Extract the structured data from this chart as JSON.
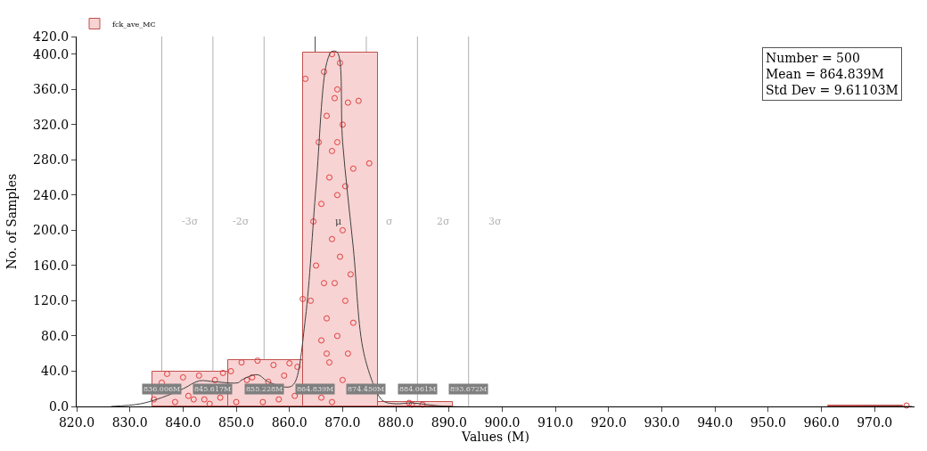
{
  "chart_data": {
    "type": "histogram",
    "xlabel": "Values (M)",
    "ylabel": "No. of Samples",
    "xlim": [
      820,
      977.5
    ],
    "ylim": [
      0,
      420
    ],
    "xticks": [
      {
        "value": 820,
        "label": "820.0"
      },
      {
        "value": 830,
        "label": "830.0"
      },
      {
        "value": 840,
        "label": "840.0"
      },
      {
        "value": 850,
        "label": "850.0"
      },
      {
        "value": 860,
        "label": "860.0"
      },
      {
        "value": 870,
        "label": "870.0"
      },
      {
        "value": 880,
        "label": "880.0"
      },
      {
        "value": 890,
        "label": "890.0"
      },
      {
        "value": 900,
        "label": "900.0"
      },
      {
        "value": 910,
        "label": "910.0"
      },
      {
        "value": 920,
        "label": "920.0"
      },
      {
        "value": 930,
        "label": "930.0"
      },
      {
        "value": 940,
        "label": "940.0"
      },
      {
        "value": 950,
        "label": "950.0"
      },
      {
        "value": 960,
        "label": "960.0"
      },
      {
        "value": 970,
        "label": "970.0"
      }
    ],
    "yticks": [
      {
        "value": 0,
        "label": "0.0"
      },
      {
        "value": 40,
        "label": "40.0"
      },
      {
        "value": 80,
        "label": "80.0"
      },
      {
        "value": 120,
        "label": "120.0"
      },
      {
        "value": 160,
        "label": "160.0"
      },
      {
        "value": 200,
        "label": "200.0"
      },
      {
        "value": 240,
        "label": "240.0"
      },
      {
        "value": 280,
        "label": "280.0"
      },
      {
        "value": 320,
        "label": "320.0"
      },
      {
        "value": 360,
        "label": "360.0"
      },
      {
        "value": 400,
        "label": "400.0"
      },
      {
        "value": 420,
        "label": "420.0"
      }
    ],
    "grid": false,
    "legend": "top left",
    "series": [
      {
        "name": "fck_ave_MC",
        "color": "#f8d3d3",
        "bins": [
          834.3,
          848.4,
          862.5,
          876.6,
          890.7,
          904.8,
          918.9,
          933.0,
          947.1,
          961.2,
          975.3
        ],
        "values": [
          39,
          53,
          402,
          5,
          0,
          0,
          0,
          0,
          0,
          1
        ]
      },
      {
        "type": "scatter",
        "color": "#e03c3c",
        "marker": "circle",
        "x": [
          834.5,
          836,
          837,
          838.5,
          840,
          841,
          842,
          843,
          844,
          845,
          846,
          847,
          847.5,
          849,
          850,
          851,
          852,
          853,
          854,
          855,
          856,
          857,
          858,
          859,
          860,
          861,
          861.5,
          863,
          862.5,
          864.5,
          865,
          865.5,
          866,
          866.5,
          867,
          867,
          867.5,
          867.5,
          868,
          868,
          868,
          868.5,
          868.5,
          869,
          869,
          869,
          869.5,
          869.5,
          870,
          870,
          870,
          870.5,
          871,
          871,
          871.5,
          872,
          872,
          866,
          866.5,
          867,
          868,
          869,
          866,
          870.5,
          875,
          873,
          864,
          882.5,
          883,
          885,
          976
        ],
        "values": [
          8,
          27,
          37,
          5,
          33,
          12,
          8,
          35,
          8,
          3,
          30,
          10,
          38,
          40,
          5,
          50,
          30,
          33,
          52,
          5,
          28,
          47,
          8,
          35,
          49,
          12,
          45,
          372,
          122,
          210,
          160,
          300,
          230,
          380,
          330,
          100,
          260,
          50,
          400,
          190,
          5,
          350,
          140,
          300,
          80,
          240,
          390,
          170,
          30,
          320,
          200,
          120,
          345,
          60,
          150,
          270,
          95,
          10,
          140,
          60,
          290,
          360,
          75,
          250,
          276,
          347,
          120,
          4,
          2,
          2,
          1
        ]
      },
      {
        "type": "line",
        "color": "#404040",
        "line_style": "solid",
        "marker": "none",
        "x": [
          826.5,
          832,
          836,
          840,
          843,
          846,
          850.4,
          851,
          854,
          856,
          859.9,
          861,
          863,
          865,
          867,
          868,
          869,
          870,
          872,
          874,
          877,
          878,
          880,
          883,
          886,
          890,
          977
        ],
        "values": [
          0,
          3,
          10,
          20,
          29,
          28,
          27,
          30,
          36,
          28,
          22,
          27,
          100,
          250,
          390,
          403,
          402,
          300,
          180,
          60,
          10,
          5,
          3,
          4,
          2,
          0,
          0
        ]
      }
    ],
    "ref_lines": [
      {
        "axis": "x",
        "value": 836.006,
        "label": "-3σ",
        "color": "#b0b0b0"
      },
      {
        "axis": "x",
        "value": 845.617,
        "label": "-2σ",
        "color": "#b0b0b0"
      },
      {
        "axis": "x",
        "value": 855.228,
        "color": "#b0b0b0"
      },
      {
        "axis": "x",
        "value": 864.839,
        "label": "μ",
        "color": "#404040"
      },
      {
        "axis": "x",
        "value": 874.45,
        "label": "σ",
        "color": "#b0b0b0"
      },
      {
        "axis": "x",
        "value": 884.061,
        "label": "2σ",
        "color": "#b0b0b0"
      },
      {
        "axis": "x",
        "value": 893.672,
        "label": "3σ",
        "color": "#b0b0b0"
      }
    ],
    "annotations": [
      {
        "text": "836.006M",
        "x": 836.006,
        "y": 20
      },
      {
        "text": "845.617M",
        "x": 845.617,
        "y": 20
      },
      {
        "text": "855.228M",
        "x": 855.228,
        "y": 20
      },
      {
        "text": "864.839M",
        "x": 864.839,
        "y": 20
      },
      {
        "text": "874.450M",
        "x": 874.45,
        "y": 20
      },
      {
        "text": "884.061M",
        "x": 884.061,
        "y": 20
      },
      {
        "text": "893.672M",
        "x": 893.672,
        "y": 20
      },
      "Number = 500\nMean = 864.839M\nStd Dev = 9.61103M"
    ]
  }
}
